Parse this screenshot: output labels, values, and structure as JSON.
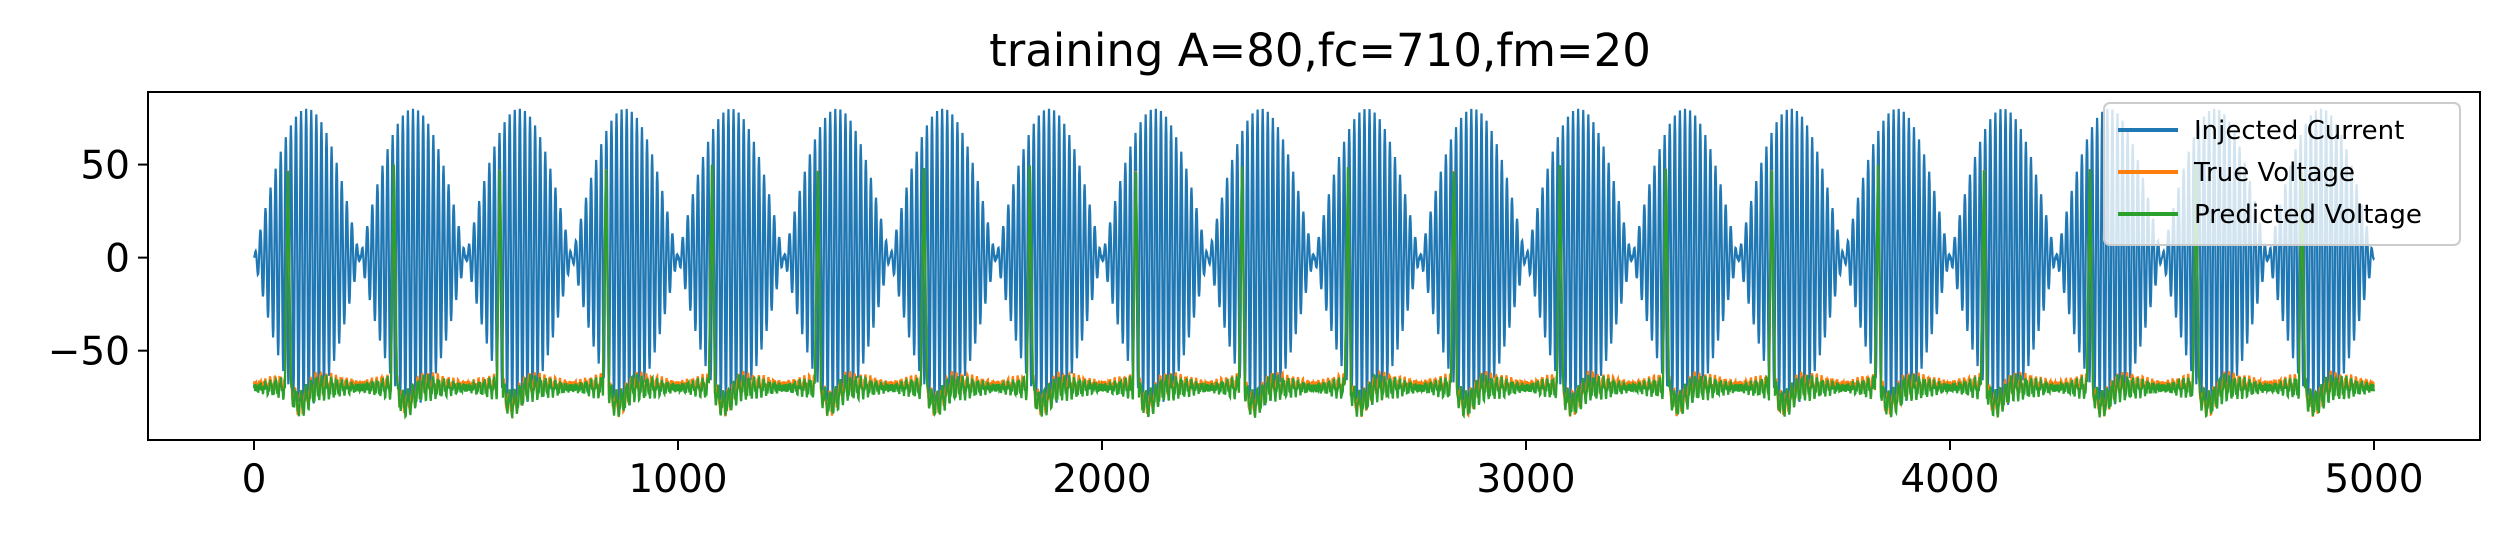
{
  "chart_data": {
    "type": "line",
    "title": "training A=80,fc=710,fm=20",
    "xlabel": "",
    "ylabel": "",
    "xlim": [
      -250,
      5250
    ],
    "ylim": [
      -98,
      89
    ],
    "xticks": [
      0,
      1000,
      2000,
      3000,
      4000,
      5000
    ],
    "xtick_labels": [
      "0",
      "1000",
      "2000",
      "3000",
      "4000",
      "5000"
    ],
    "yticks": [
      50,
      0,
      -50
    ],
    "ytick_labels": [
      "50",
      "0",
      "−50"
    ],
    "grid": false,
    "legend_position": "top-right",
    "n_samples": 5000,
    "series": [
      {
        "name": "Injected Current",
        "color": "#1f77b4",
        "amplitude": 80,
        "carrier_frequency": 710,
        "modulation_frequency": 20,
        "description_values": {
          "min": -80,
          "max": 80
        }
      },
      {
        "name": "True Voltage",
        "color": "#ff7f0e",
        "rest_level": -68,
        "spike_peak": 48,
        "trough": -88,
        "spike_times": [
          80,
          330,
          580,
          830,
          1080,
          1330,
          1580,
          1830,
          2080,
          2330,
          2580,
          2830,
          3080,
          3330,
          3580,
          3830,
          4080,
          4330,
          4580,
          4830
        ]
      },
      {
        "name": "Predicted Voltage",
        "color": "#2ca02c",
        "rest_level": -70,
        "spike_peak": 48,
        "trough": -86,
        "spike_times": [
          80,
          330,
          580,
          830,
          1080,
          1330,
          1580,
          1830,
          2080,
          2330,
          2580,
          2830,
          3080,
          3330,
          3580,
          3830,
          4080,
          4330,
          4580,
          4830
        ]
      }
    ]
  }
}
